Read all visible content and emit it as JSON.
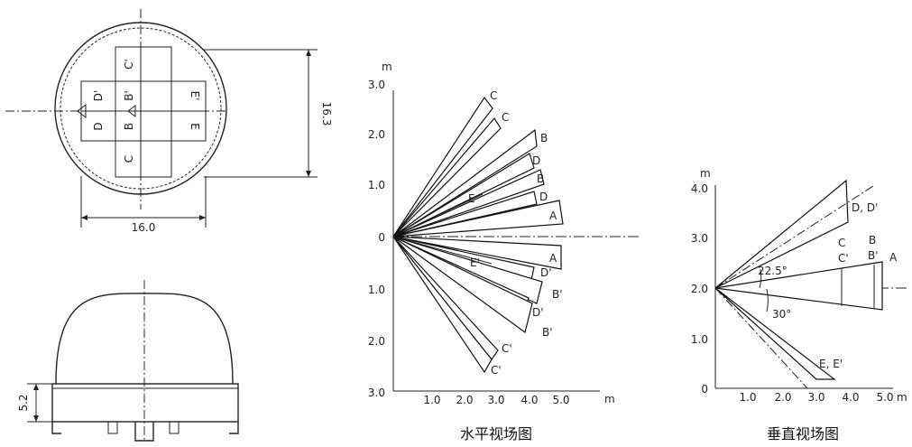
{
  "top_view": {
    "cells_top": [
      "C'",
      "B'"
    ],
    "cells_bottom": [
      "B",
      "C"
    ],
    "cell_left_top": "D'",
    "cell_left_bottom": "D",
    "cell_right_top": "E'",
    "cell_right_bottom": "E",
    "dim_width": "16.0",
    "dim_height": "16.3"
  },
  "side_view": {
    "dim_height": "5.2"
  },
  "horizontal_view": {
    "caption": "水平视场图",
    "y_unit": "m",
    "x_unit": "m",
    "y_ticks": [
      "3.0",
      "2.0",
      "1.0",
      "0",
      "1.0",
      "2.0",
      "3.0"
    ],
    "x_ticks": [
      "1.0",
      "2.0",
      "3.0",
      "4.0",
      "5.0"
    ],
    "zone_labels": [
      "C",
      "C",
      "B",
      "D",
      "B",
      "E",
      "D",
      "A",
      "A",
      "E'",
      "D'",
      "B'",
      "D'",
      "B'",
      "C'",
      "C'"
    ]
  },
  "vertical_view": {
    "caption": "垂直视场图",
    "y_unit": "m",
    "x_unit": "m",
    "y_ticks": [
      "4.0",
      "3.0",
      "2.0",
      "1.0",
      "0"
    ],
    "x_ticks": [
      "1.0",
      "2.0",
      "3.0",
      "4.0",
      "5.0"
    ],
    "zone_labels": [
      "D, D'",
      "C",
      "B",
      "C'",
      "B'",
      "A",
      "E, E'"
    ],
    "angle_labels": [
      "22.5°",
      "30°"
    ]
  }
}
